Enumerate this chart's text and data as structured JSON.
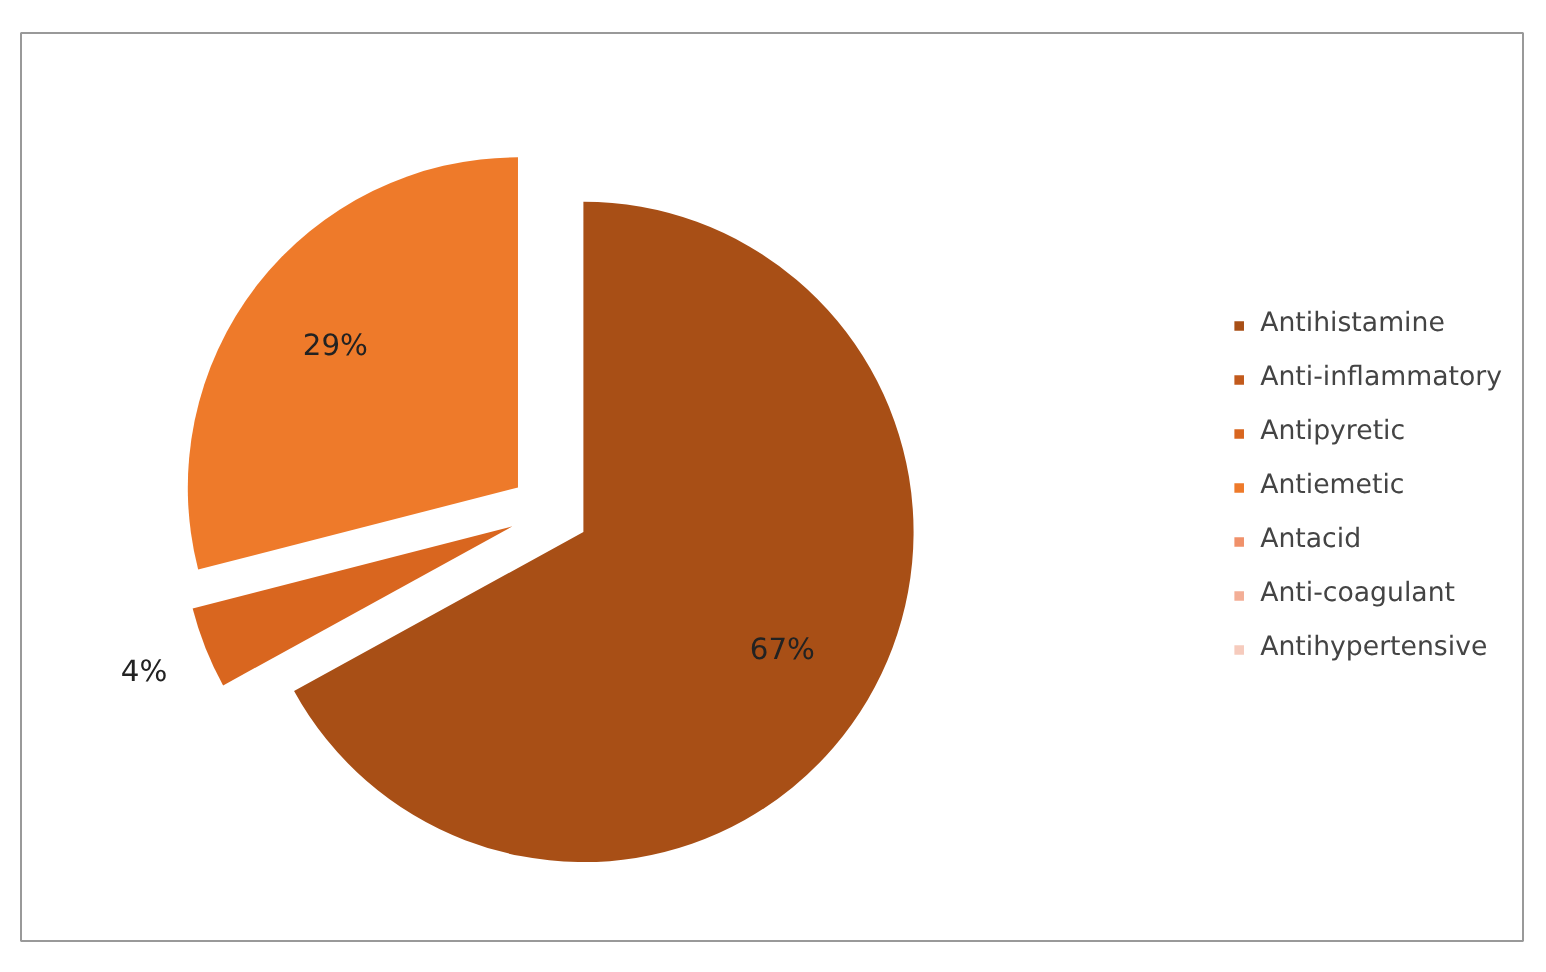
{
  "chart_data": {
    "type": "pie",
    "categories": [
      "Antihistamine",
      "Anti-inflammatory",
      "Antipyretic",
      "Antiemetic",
      "Antacid",
      "Anti-coagulant",
      "Antihypertensive"
    ],
    "values": [
      67,
      0,
      4,
      29,
      0,
      0,
      0
    ],
    "colors": [
      "#a84f16",
      "#c25a1c",
      "#d9661f",
      "#ee7a2a",
      "#f0916a",
      "#f3ae96",
      "#f6cbbd"
    ],
    "value_labels": [
      "67%",
      null,
      "4%",
      "29%",
      null,
      null,
      null
    ],
    "legend": "right"
  }
}
